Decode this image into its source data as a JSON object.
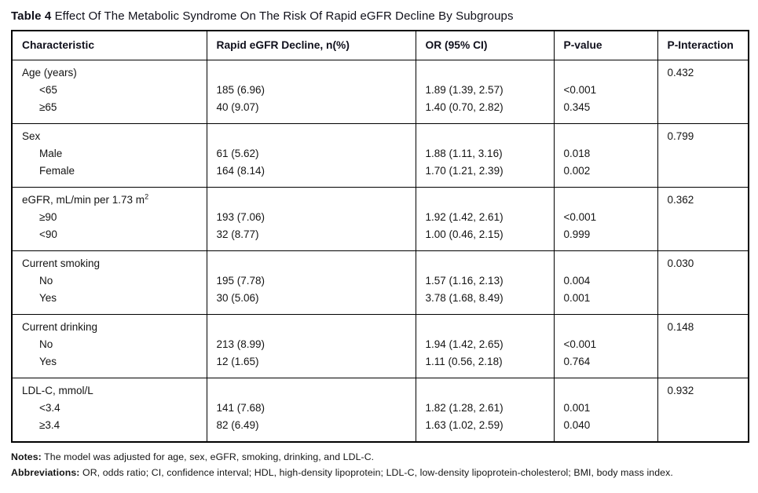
{
  "title": {
    "label": "Table 4",
    "text": "Effect Of The Metabolic Syndrome On The Risk Of Rapid eGFR Decline By Subgroups"
  },
  "table": {
    "headers": [
      "Characteristic",
      "Rapid eGFR Decline, n(%)",
      "OR (95% CI)",
      "P-value",
      "P-Interaction"
    ],
    "groups": [
      {
        "label": "Age (years)",
        "p_interaction": "0.432",
        "rows": [
          {
            "name": "<65",
            "n_pct": "185 (6.96)",
            "or_ci": "1.89 (1.39, 2.57)",
            "p": "<0.001"
          },
          {
            "name": "≥65",
            "n_pct": "40 (9.07)",
            "or_ci": "1.40 (0.70, 2.82)",
            "p": "0.345"
          }
        ]
      },
      {
        "label": "Sex",
        "p_interaction": "0.799",
        "rows": [
          {
            "name": "Male",
            "n_pct": "61 (5.62)",
            "or_ci": "1.88 (1.11, 3.16)",
            "p": "0.018"
          },
          {
            "name": "Female",
            "n_pct": "164 (8.14)",
            "or_ci": "1.70 (1.21, 2.39)",
            "p": "0.002"
          }
        ]
      },
      {
        "label": "eGFR, mL/min per 1.73 m",
        "label_sup": "2",
        "p_interaction": "0.362",
        "rows": [
          {
            "name": "≥90",
            "n_pct": "193 (7.06)",
            "or_ci": "1.92 (1.42, 2.61)",
            "p": "<0.001"
          },
          {
            "name": "<90",
            "n_pct": "32 (8.77)",
            "or_ci": "1.00 (0.46, 2.15)",
            "p": "0.999"
          }
        ]
      },
      {
        "label": "Current smoking",
        "p_interaction": "0.030",
        "rows": [
          {
            "name": "No",
            "n_pct": "195 (7.78)",
            "or_ci": "1.57 (1.16, 2.13)",
            "p": "0.004"
          },
          {
            "name": "Yes",
            "n_pct": "30 (5.06)",
            "or_ci": "3.78 (1.68, 8.49)",
            "p": "0.001"
          }
        ]
      },
      {
        "label": "Current drinking",
        "p_interaction": "0.148",
        "rows": [
          {
            "name": "No",
            "n_pct": "213 (8.99)",
            "or_ci": "1.94 (1.42, 2.65)",
            "p": "<0.001"
          },
          {
            "name": "Yes",
            "n_pct": "12 (1.65)",
            "or_ci": "1.11 (0.56, 2.18)",
            "p": "0.764"
          }
        ]
      },
      {
        "label": "LDL-C, mmol/L",
        "p_interaction": "0.932",
        "rows": [
          {
            "name": "<3.4",
            "n_pct": "141 (7.68)",
            "or_ci": "1.82 (1.28, 2.61)",
            "p": "0.001"
          },
          {
            "name": "≥3.4",
            "n_pct": "82 (6.49)",
            "or_ci": "1.63 (1.02, 2.59)",
            "p": "0.040"
          }
        ]
      }
    ]
  },
  "footer": {
    "notes_label": "Notes:",
    "notes": "The model was adjusted for age, sex, eGFR, smoking, drinking, and LDL-C.",
    "abbrev_label": "Abbreviations:",
    "abbrev": "OR, odds ratio; CI, confidence interval; HDL, high-density lipoprotein; LDL-C, low-density lipoprotein-cholesterol; BMI, body mass index."
  }
}
